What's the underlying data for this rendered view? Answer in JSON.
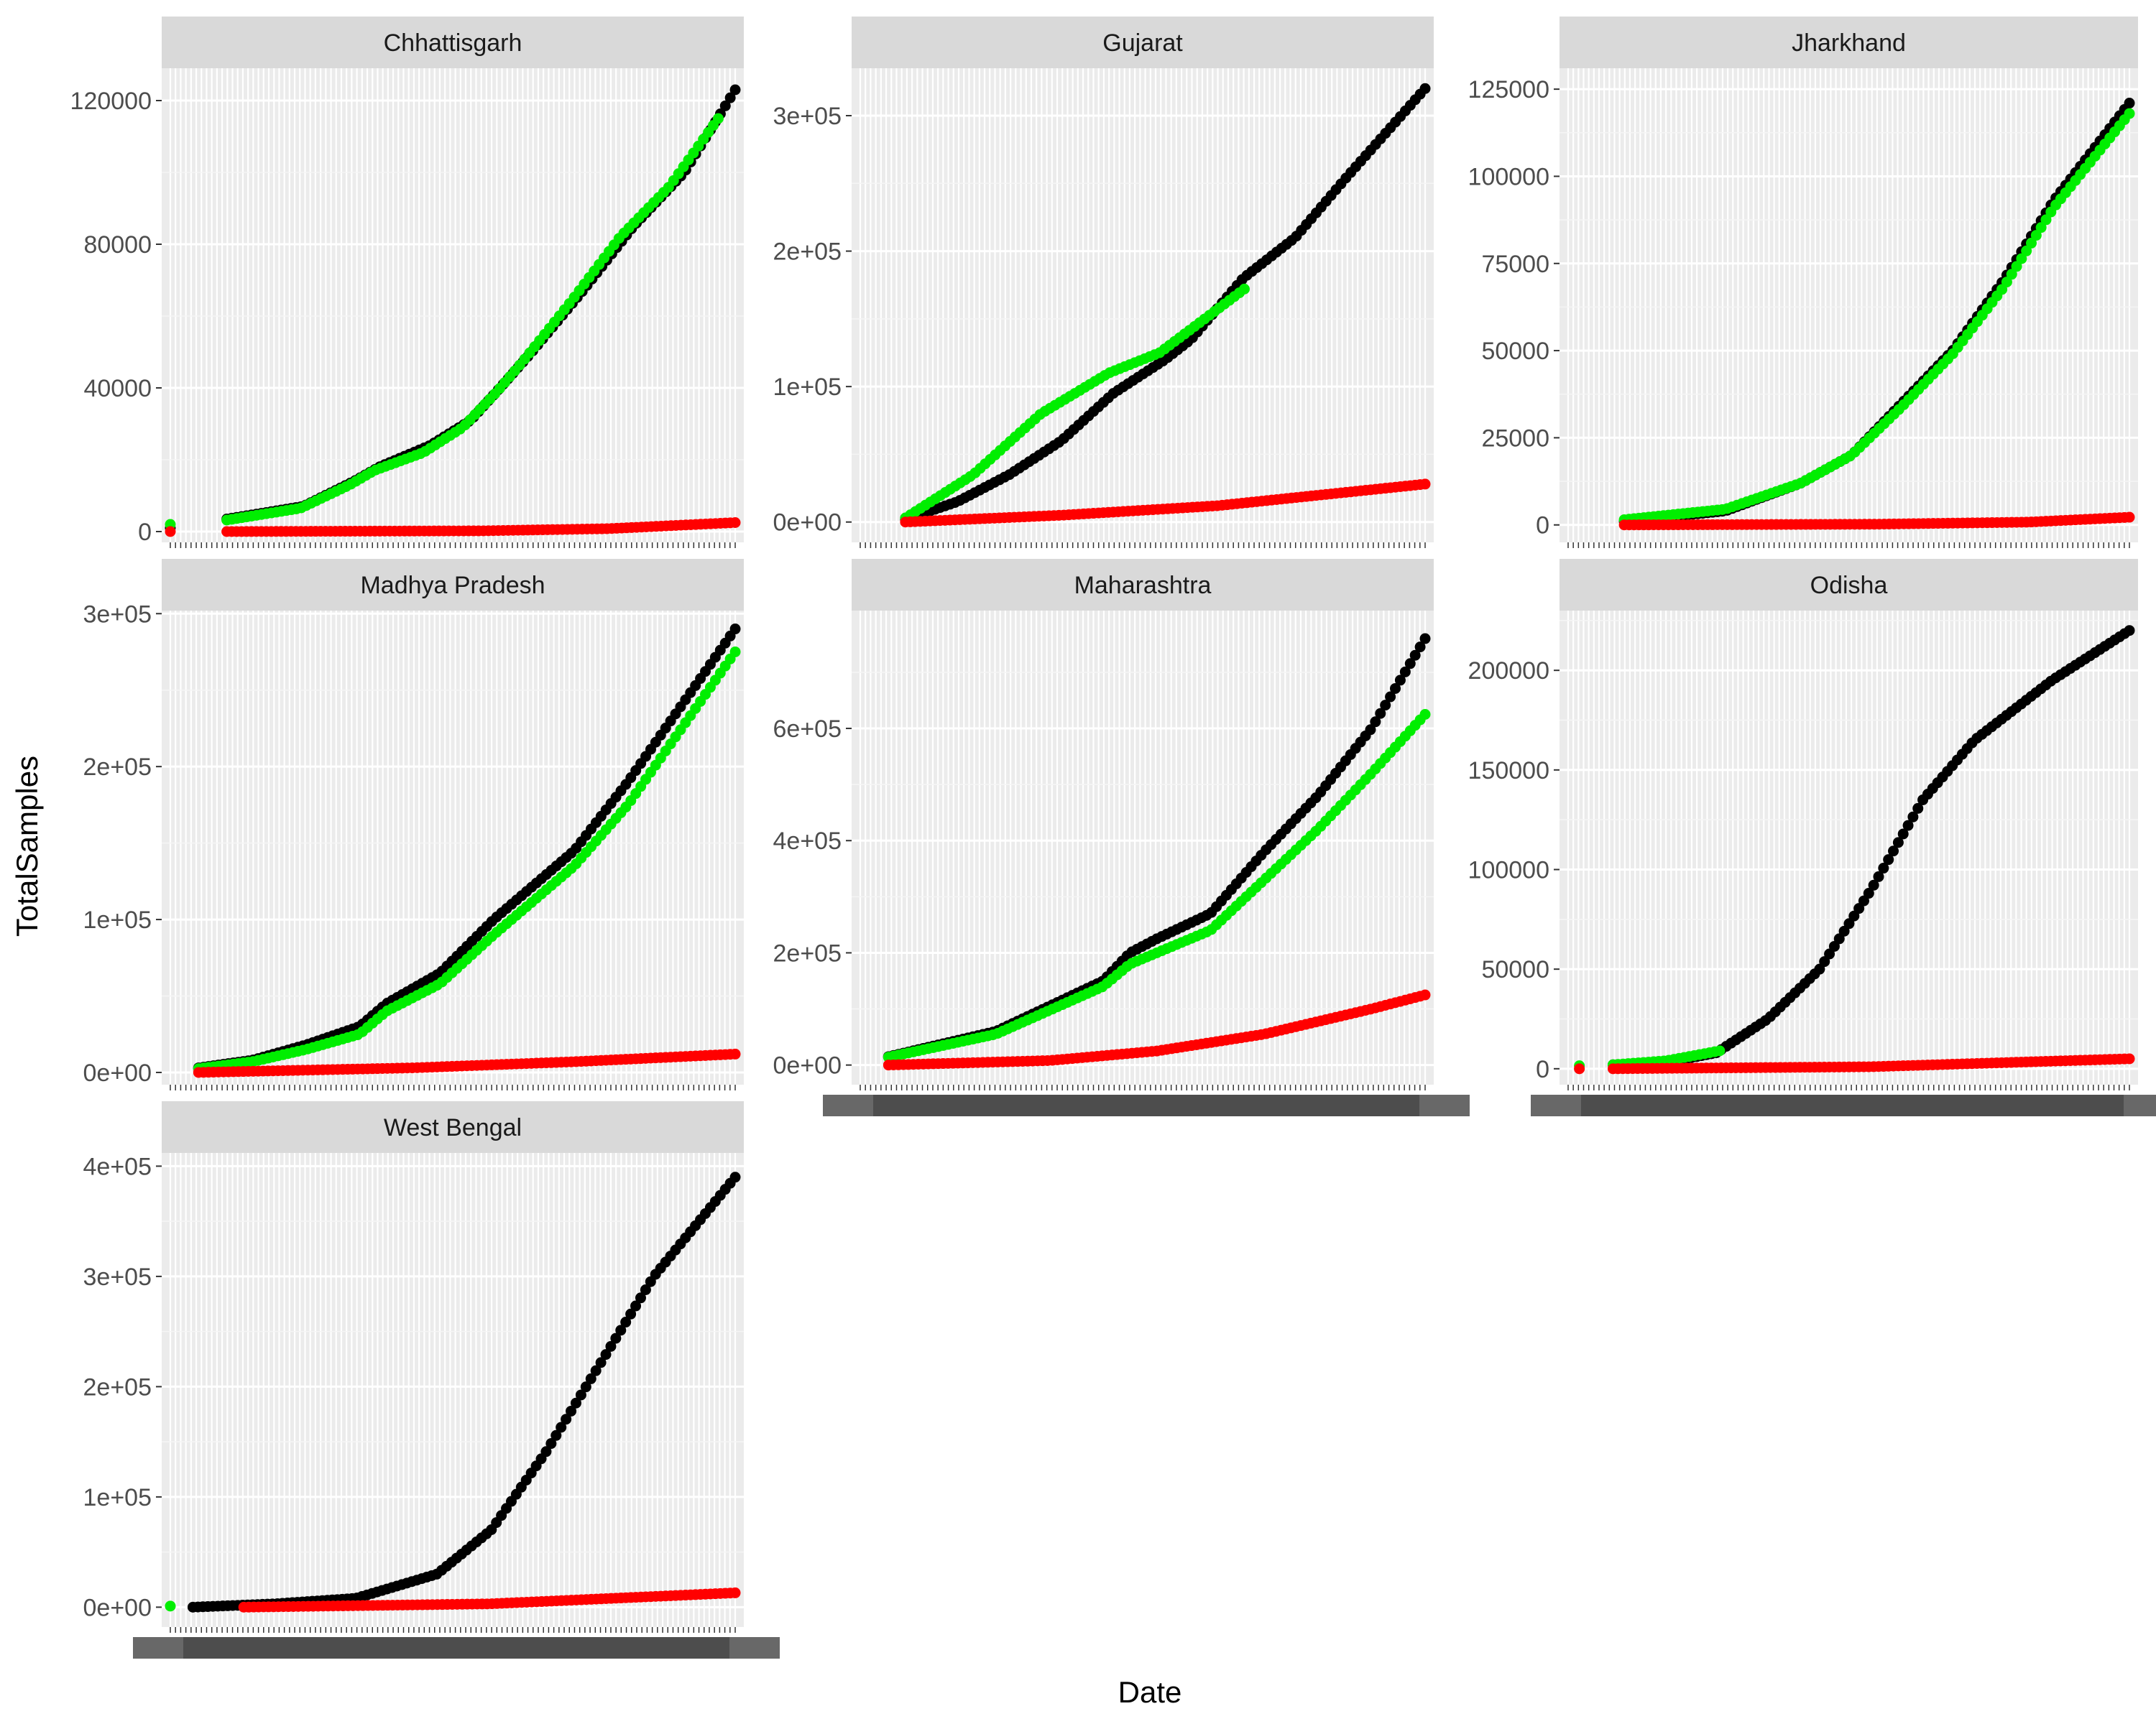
{
  "chart_data": {
    "type": "scatter",
    "xlabel": "Date",
    "ylabel": "TotalSamples",
    "x_tick_labels": "dense overlapping date labels (illegible)",
    "series_colors": [
      "#000000",
      "#00EE00",
      "#FF0000"
    ],
    "panels": [
      {
        "name": "Chhattisgarh",
        "ylim": [
          -3000,
          129000
        ],
        "yticks": [
          0,
          40000,
          80000,
          120000
        ],
        "ytick_labels": [
          "0",
          "40000",
          "80000",
          "120000"
        ],
        "start_offset": 0.1,
        "series": [
          {
            "color": "#000000",
            "range": [
              0.1,
              1.0
            ],
            "knots": [
              [
                0,
                3500
              ],
              [
                0.15,
                7000
              ],
              [
                0.25,
                14000
              ],
              [
                0.3,
                18000
              ],
              [
                0.4,
                24000
              ],
              [
                0.48,
                31000
              ],
              [
                0.55,
                42000
              ],
              [
                0.6,
                50000
              ],
              [
                0.7,
                67000
              ],
              [
                0.8,
                85000
              ],
              [
                0.9,
                100000
              ],
              [
                1.0,
                123000
              ]
            ],
            "extra": [
              [
                0.0,
                1000
              ]
            ]
          },
          {
            "color": "#00EE00",
            "range": [
              0.1,
              0.97
            ],
            "knots": [
              [
                0,
                3200
              ],
              [
                0.15,
                6500
              ],
              [
                0.25,
                13000
              ],
              [
                0.3,
                17000
              ],
              [
                0.4,
                22000
              ],
              [
                0.48,
                29000
              ],
              [
                0.55,
                39000
              ],
              [
                0.6,
                47000
              ],
              [
                0.7,
                64000
              ],
              [
                0.8,
                82000
              ],
              [
                0.9,
                96000
              ],
              [
                1.0,
                115000
              ]
            ],
            "extra": [
              [
                0.0,
                2000
              ]
            ]
          },
          {
            "color": "#FF0000",
            "range": [
              0.1,
              1.0
            ],
            "knots": [
              [
                0,
                0
              ],
              [
                0.5,
                200
              ],
              [
                0.75,
                800
              ],
              [
                1.0,
                2500
              ]
            ],
            "extra": [
              [
                0.0,
                0
              ]
            ]
          }
        ]
      },
      {
        "name": "Gujarat",
        "ylim": [
          -15000,
          335000
        ],
        "yticks": [
          0,
          100000,
          200000,
          300000
        ],
        "ytick_labels": [
          "0e+00",
          "1e+05",
          "2e+05",
          "3e+05"
        ],
        "series": [
          {
            "color": "#000000",
            "range": [
              0.08,
              1.0
            ],
            "knots": [
              [
                0,
                2000
              ],
              [
                0.1,
                15000
              ],
              [
                0.2,
                35000
              ],
              [
                0.3,
                60000
              ],
              [
                0.4,
                95000
              ],
              [
                0.5,
                120000
              ],
              [
                0.55,
                135000
              ],
              [
                0.65,
                180000
              ],
              [
                0.75,
                210000
              ],
              [
                0.85,
                255000
              ],
              [
                1.0,
                320000
              ]
            ]
          },
          {
            "color": "#00EE00",
            "range": [
              0.08,
              0.68
            ],
            "knots": [
              [
                0,
                3000
              ],
              [
                0.2,
                35000
              ],
              [
                0.4,
                80000
              ],
              [
                0.6,
                110000
              ],
              [
                0.75,
                125000
              ],
              [
                1.0,
                172000
              ]
            ]
          },
          {
            "color": "#FF0000",
            "range": [
              0.08,
              1.0
            ],
            "knots": [
              [
                0,
                0
              ],
              [
                0.3,
                5000
              ],
              [
                0.6,
                12000
              ],
              [
                1.0,
                28000
              ]
            ]
          }
        ]
      },
      {
        "name": "Jharkhand",
        "ylim": [
          -5000,
          131000
        ],
        "yticks": [
          0,
          25000,
          50000,
          75000,
          100000,
          125000
        ],
        "ytick_labels": [
          "0",
          "25000",
          "50000",
          "75000",
          "100000",
          "125000"
        ],
        "series": [
          {
            "color": "#000000",
            "range": [
              0.1,
              1.0
            ],
            "knots": [
              [
                0,
                1000
              ],
              [
                0.2,
                4000
              ],
              [
                0.35,
                12000
              ],
              [
                0.45,
                20000
              ],
              [
                0.55,
                35000
              ],
              [
                0.65,
                50000
              ],
              [
                0.75,
                70000
              ],
              [
                0.85,
                93000
              ],
              [
                1.0,
                121000
              ]
            ]
          },
          {
            "color": "#00EE00",
            "range": [
              0.1,
              1.0
            ],
            "knots": [
              [
                0,
                1500
              ],
              [
                0.2,
                4500
              ],
              [
                0.35,
                12000
              ],
              [
                0.45,
                20000
              ],
              [
                0.55,
                34000
              ],
              [
                0.65,
                49000
              ],
              [
                0.75,
                68000
              ],
              [
                0.85,
                91000
              ],
              [
                1.0,
                118000
              ]
            ]
          },
          {
            "color": "#FF0000",
            "range": [
              0.1,
              1.0
            ],
            "knots": [
              [
                0,
                0
              ],
              [
                0.5,
                200
              ],
              [
                0.8,
                800
              ],
              [
                1.0,
                2200
              ]
            ]
          }
        ]
      },
      {
        "name": "Madhya Pradesh",
        "ylim": [
          -8000,
          302000
        ],
        "yticks": [
          0,
          100000,
          200000,
          300000
        ],
        "ytick_labels": [
          "0e+00",
          "1e+05",
          "2e+05",
          "3e+05"
        ],
        "series": [
          {
            "color": "#000000",
            "range": [
              0.05,
              1.0
            ],
            "knots": [
              [
                0,
                3000
              ],
              [
                0.1,
                8000
              ],
              [
                0.2,
                18000
              ],
              [
                0.3,
                30000
              ],
              [
                0.35,
                45000
              ],
              [
                0.45,
                65000
              ],
              [
                0.55,
                100000
              ],
              [
                0.65,
                130000
              ],
              [
                0.7,
                145000
              ],
              [
                0.8,
                190000
              ],
              [
                0.9,
                240000
              ],
              [
                1.0,
                290000
              ]
            ]
          },
          {
            "color": "#00EE00",
            "range": [
              0.05,
              1.0
            ],
            "knots": [
              [
                0,
                2500
              ],
              [
                0.1,
                7000
              ],
              [
                0.2,
                15000
              ],
              [
                0.3,
                25000
              ],
              [
                0.35,
                40000
              ],
              [
                0.45,
                58000
              ],
              [
                0.55,
                90000
              ],
              [
                0.65,
                120000
              ],
              [
                0.7,
                135000
              ],
              [
                0.8,
                175000
              ],
              [
                0.9,
                225000
              ],
              [
                1.0,
                275000
              ]
            ]
          },
          {
            "color": "#FF0000",
            "range": [
              0.05,
              1.0
            ],
            "knots": [
              [
                0,
                0
              ],
              [
                0.4,
                3000
              ],
              [
                0.7,
                7000
              ],
              [
                1.0,
                12000
              ]
            ]
          }
        ]
      },
      {
        "name": "Maharashtra",
        "ylim": [
          -35000,
          810000
        ],
        "yticks": [
          0,
          200000,
          400000,
          600000
        ],
        "ytick_labels": [
          "0e+00",
          "2e+05",
          "4e+05",
          "6e+05"
        ],
        "series": [
          {
            "color": "#000000",
            "range": [
              0.05,
              1.0
            ],
            "knots": [
              [
                0,
                15000
              ],
              [
                0.2,
                60000
              ],
              [
                0.4,
                150000
              ],
              [
                0.45,
                200000
              ],
              [
                0.5,
                225000
              ],
              [
                0.6,
                270000
              ],
              [
                0.7,
                380000
              ],
              [
                0.8,
                480000
              ],
              [
                0.9,
                600000
              ],
              [
                1.0,
                760000
              ]
            ]
          },
          {
            "color": "#00EE00",
            "range": [
              0.05,
              1.0
            ],
            "knots": [
              [
                0,
                14000
              ],
              [
                0.2,
                55000
              ],
              [
                0.4,
                140000
              ],
              [
                0.45,
                180000
              ],
              [
                0.5,
                200000
              ],
              [
                0.6,
                240000
              ],
              [
                0.7,
                330000
              ],
              [
                0.8,
                420000
              ],
              [
                0.9,
                520000
              ],
              [
                1.0,
                625000
              ]
            ]
          },
          {
            "color": "#FF0000",
            "range": [
              0.05,
              1.0
            ],
            "knots": [
              [
                0,
                0
              ],
              [
                0.3,
                8000
              ],
              [
                0.5,
                25000
              ],
              [
                0.7,
                55000
              ],
              [
                0.9,
                100000
              ],
              [
                1.0,
                125000
              ]
            ]
          }
        ]
      },
      {
        "name": "Odisha",
        "ylim": [
          -8000,
          230000
        ],
        "yticks": [
          0,
          50000,
          100000,
          150000,
          200000
        ],
        "ytick_labels": [
          "0",
          "50000",
          "100000",
          "150000",
          "200000"
        ],
        "series": [
          {
            "color": "#000000",
            "range": [
              0.08,
              1.0
            ],
            "knots": [
              [
                0,
                2000
              ],
              [
                0.1,
                3000
              ],
              [
                0.2,
                8000
              ],
              [
                0.3,
                25000
              ],
              [
                0.4,
                50000
              ],
              [
                0.5,
                90000
              ],
              [
                0.6,
                135000
              ],
              [
                0.7,
                165000
              ],
              [
                0.85,
                195000
              ],
              [
                1.0,
                220000
              ]
            ]
          },
          {
            "color": "#00EE00",
            "range": [
              0.08,
              0.27
            ],
            "knots": [
              [
                0,
                2000
              ],
              [
                0.5,
                4000
              ],
              [
                1.0,
                9000
              ]
            ],
            "extra": [
              [
                0.02,
                1500
              ]
            ]
          },
          {
            "color": "#FF0000",
            "range": [
              0.08,
              1.0
            ],
            "knots": [
              [
                0,
                0
              ],
              [
                0.5,
                1000
              ],
              [
                1.0,
                5000
              ]
            ],
            "extra": [
              [
                0.02,
                0
              ]
            ]
          }
        ]
      },
      {
        "name": "West Bengal",
        "ylim": [
          -18000,
          412000
        ],
        "yticks": [
          0,
          100000,
          200000,
          300000,
          400000
        ],
        "ytick_labels": [
          "0e+00",
          "1e+05",
          "2e+05",
          "3e+05",
          "4e+05"
        ],
        "series": [
          {
            "color": "#000000",
            "range": [
              0.04,
              1.0
            ],
            "knots": [
              [
                0,
                0
              ],
              [
                0.15,
                3000
              ],
              [
                0.3,
                8000
              ],
              [
                0.45,
                30000
              ],
              [
                0.55,
                70000
              ],
              [
                0.65,
                140000
              ],
              [
                0.75,
                220000
              ],
              [
                0.85,
                300000
              ],
              [
                1.0,
                390000
              ]
            ]
          },
          {
            "color": "#00EE00",
            "range": [
              0.0,
              0.0
            ],
            "knots": [
              [
                0,
                1000
              ],
              [
                1,
                1000
              ]
            ],
            "extra": [
              [
                0.0,
                1000
              ]
            ]
          },
          {
            "color": "#FF0000",
            "range": [
              0.13,
              1.0
            ],
            "knots": [
              [
                0,
                0
              ],
              [
                0.5,
                3000
              ],
              [
                1.0,
                13000
              ]
            ]
          }
        ]
      }
    ]
  }
}
